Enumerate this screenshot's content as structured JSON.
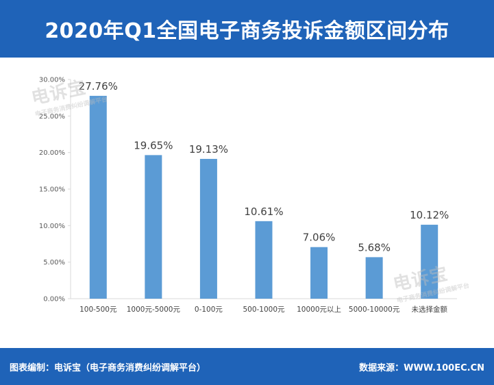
{
  "header": {
    "title": "2020年Q1全国电子商务投诉金额区间分布"
  },
  "footer": {
    "editor": "图表编制：电诉宝（电子商务消费纠纷调解平台）",
    "source": "数据来源：WWW.100EC.CN"
  },
  "watermark": {
    "brand": "电诉宝",
    "sub": "电子商务消费纠纷调解平台"
  },
  "colors": {
    "header_bg": "#1f63b8",
    "bar": "#5b9bd5",
    "axis": "#d9d9d9",
    "label": "#404040"
  },
  "chart_data": {
    "type": "bar",
    "categories": [
      "100-500元",
      "1000元-5000元",
      "0-100元",
      "500-1000元",
      "10000元以上",
      "5000-10000元",
      "未选择金额"
    ],
    "values": [
      27.76,
      19.65,
      19.13,
      10.61,
      7.06,
      5.68,
      10.12
    ],
    "data_labels": [
      "27.76%",
      "19.65%",
      "19.13%",
      "10.61%",
      "7.06%",
      "5.68%",
      "10.12%"
    ],
    "ylim": [
      0,
      30
    ],
    "yticks": [
      0,
      5,
      10,
      15,
      20,
      25,
      30
    ],
    "ytick_labels": [
      "0.00%",
      "5.00%",
      "10.00%",
      "15.00%",
      "20.00%",
      "25.00%",
      "30.00%"
    ],
    "grid": false
  }
}
